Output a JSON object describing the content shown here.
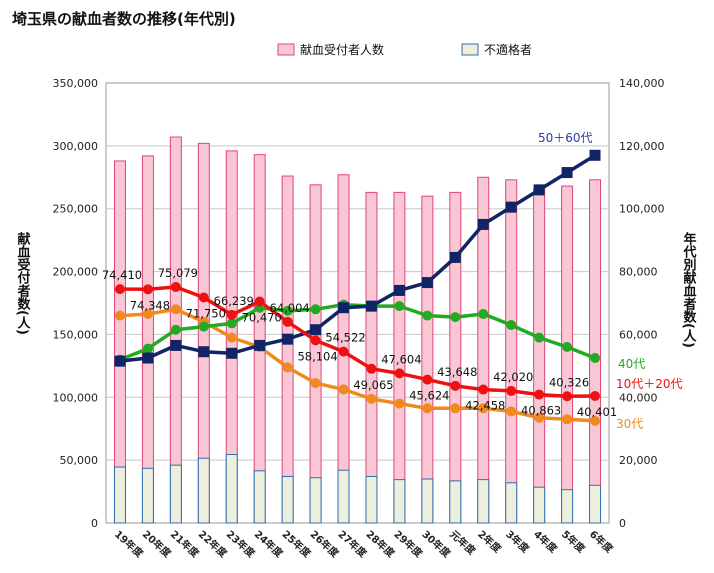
{
  "chart_data": {
    "type": "bar+line",
    "title": "埼玉県の献血者数の推移(年代別)",
    "ylabel_left": "献血受付者数(人)",
    "ylabel_right": "年代別献血者数(人)",
    "ylim_left": [
      0,
      350000
    ],
    "ylim_right": [
      0,
      140000
    ],
    "yticks_left": [
      "0",
      "50,000",
      "100,000",
      "150,000",
      "200,000",
      "250,000",
      "300,000",
      "350,000"
    ],
    "yticks_right": [
      "0",
      "20,000",
      "40,000",
      "60,000",
      "80,000",
      "100,000",
      "120,000",
      "140,000"
    ],
    "categories": [
      "19年度",
      "20年度",
      "21年度",
      "22年度",
      "23年度",
      "24年度",
      "25年度",
      "26年度",
      "27年度",
      "28年度",
      "29年度",
      "30年度",
      "元年度",
      "2年度",
      "3年度",
      "4年度",
      "5年度",
      "6年度"
    ],
    "bars": [
      {
        "name": "献血受付者人数",
        "color": "#f9c6d4",
        "border": "#e0457b",
        "values": [
          288000,
          292000,
          307000,
          302000,
          296000,
          293000,
          276000,
          269000,
          277000,
          263000,
          263000,
          260000,
          263000,
          275000,
          273000,
          266000,
          268000,
          273000
        ]
      },
      {
        "name": "不適格者",
        "color": "#eeeedd",
        "border": "#2f6fb0",
        "values": [
          44500,
          43500,
          46000,
          51500,
          54500,
          41500,
          37000,
          36000,
          42000,
          37000,
          34500,
          35000,
          33500,
          34500,
          32000,
          28500,
          26500,
          30000
        ]
      }
    ],
    "lines": [
      {
        "name": "50+60代",
        "label": "50＋60代",
        "color": "#102466",
        "marker": "square",
        "values": [
          51500,
          52500,
          56500,
          54500,
          54000,
          56500,
          58500,
          61500,
          68500,
          69000,
          74000,
          76500,
          84500,
          95000,
          100500,
          106000,
          111500,
          117000
        ]
      },
      {
        "name": "40代",
        "label": "40代",
        "color": "#22aa22",
        "marker": "circle",
        "values": [
          52000,
          55500,
          61500,
          62500,
          63500,
          68500,
          67500,
          68000,
          69500,
          69000,
          69000,
          66000,
          65500,
          66500,
          63000,
          59000,
          56000,
          52500
        ]
      },
      {
        "name": "10代+20代",
        "label": "10代＋20代",
        "color": "#ee1111",
        "marker": "circle",
        "values": [
          74410,
          74348,
          75079,
          71750,
          66239,
          70470,
          64004,
          58104,
          54522,
          49065,
          47604,
          45624,
          43648,
          42458,
          42020,
          40863,
          40326,
          40401
        ],
        "data_labels": [
          "74,410",
          "74,348",
          "75,079",
          "71,750",
          "66,239",
          "70,470",
          "64,004",
          "58,104",
          "54,522",
          "49,065",
          "47,604",
          "45,624",
          "43,648",
          "42,458",
          "42,020",
          "40,863",
          "40,326",
          "40,401"
        ]
      },
      {
        "name": "30代",
        "label": "30代",
        "color": "#f08a1e",
        "marker": "circle",
        "values": [
          66000,
          66500,
          68000,
          64000,
          59000,
          56000,
          49500,
          44500,
          42500,
          39500,
          38000,
          36500,
          36500,
          36500,
          35500,
          33500,
          33000,
          32500
        ]
      }
    ],
    "legend_position": "top"
  }
}
